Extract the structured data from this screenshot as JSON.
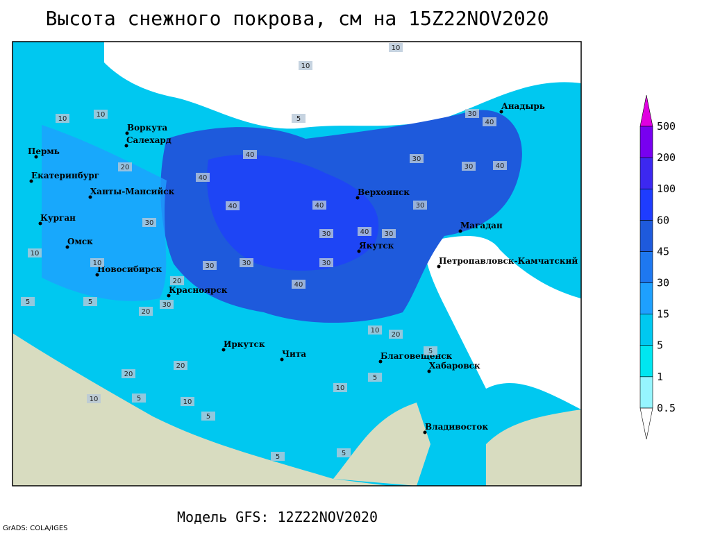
{
  "title": "Высота снежного покрова, см на 15Z22NOV2020",
  "footer": "Модель GFS: 12Z22NOV2020",
  "credit": "GrADS: COLA/IGES",
  "cities": [
    "Анадырь",
    "Воркута",
    "Салехард",
    "Пермь",
    "Екатеринбург",
    "Ханты-Мансийск",
    "Курган",
    "Омск",
    "Новосибирск",
    "Красноярск",
    "Иркутск",
    "Чита",
    "Верхоянск",
    "Якутск",
    "Магадан",
    "Петропавловск-Камчатский",
    "Благовещенск",
    "Хабаровск",
    "Владивосток"
  ],
  "contour_labels": [
    10,
    5,
    5,
    10,
    10,
    10,
    10,
    20,
    30,
    40,
    40,
    40,
    40,
    30,
    30,
    30,
    40,
    30,
    30,
    20,
    10,
    10,
    5,
    20,
    30,
    30,
    30,
    40,
    30,
    20,
    20,
    10,
    5,
    5,
    5,
    5,
    10,
    5,
    20,
    30,
    40,
    40,
    5,
    10
  ],
  "legend": {
    "levels": [
      0.5,
      1,
      5,
      15,
      30,
      45,
      60,
      100,
      200,
      500
    ],
    "colors": [
      "#ffffff",
      "#96f5ff",
      "#00e6f0",
      "#00c8f0",
      "#1ea0ff",
      "#1e78f0",
      "#1e5adc",
      "#1e3cff",
      "#3c28f0",
      "#7800f0",
      "#a000f0",
      "#e000e0"
    ]
  }
}
